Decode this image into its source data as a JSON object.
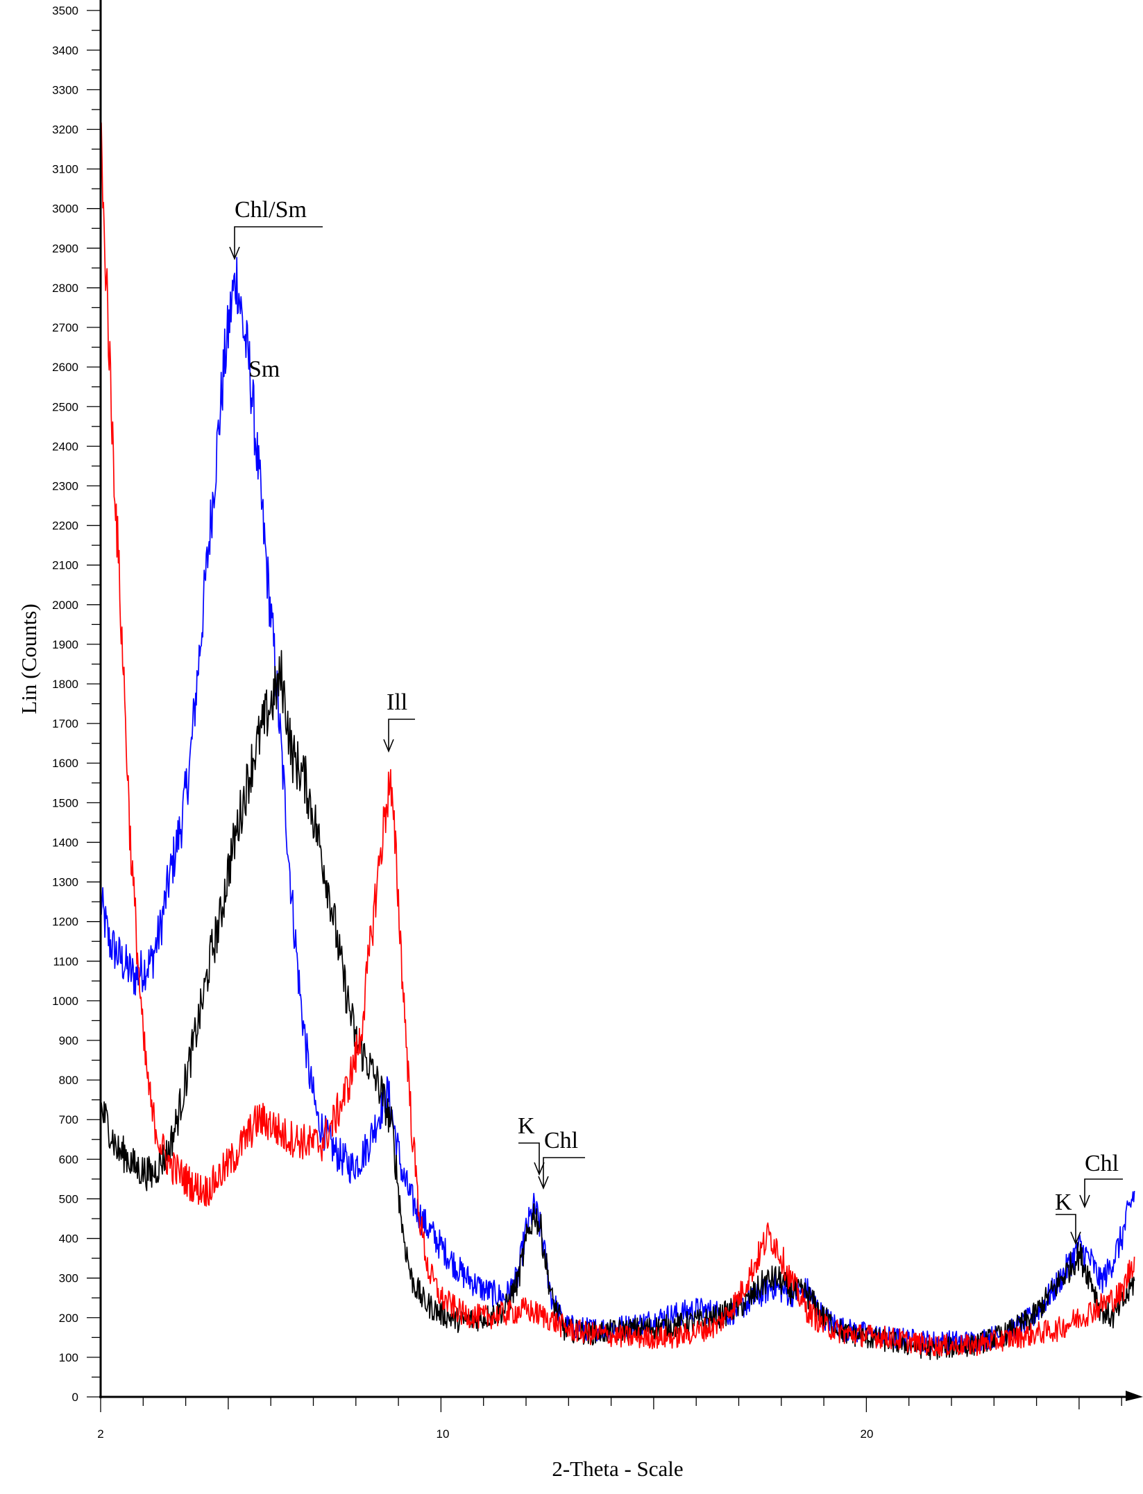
{
  "chart_data": {
    "type": "line",
    "title": "",
    "xlabel": "2-Theta - Scale",
    "ylabel": "Lin (Counts)",
    "xlim": [
      2,
      26.3
    ],
    "ylim": [
      0,
      3500
    ],
    "grid": false,
    "legend": null,
    "x_ticks_labeled": [
      2,
      10,
      20
    ],
    "x_minor_tick_step": 1,
    "y_ticks": [
      0,
      100,
      200,
      300,
      400,
      500,
      600,
      700,
      800,
      900,
      1000,
      1100,
      1200,
      1300,
      1400,
      1500,
      1600,
      1700,
      1800,
      1900,
      2000,
      2100,
      2200,
      2300,
      2400,
      2500,
      2600,
      2700,
      2800,
      2900,
      3000,
      3100,
      3200,
      3300,
      3400,
      3500
    ],
    "series": [
      {
        "name": "blue",
        "color": "#0000ff",
        "points": [
          [
            2.0,
            1250
          ],
          [
            2.2,
            1150
          ],
          [
            2.5,
            1100
          ],
          [
            2.8,
            1060
          ],
          [
            3.0,
            1080
          ],
          [
            3.2,
            1100
          ],
          [
            3.4,
            1180
          ],
          [
            3.6,
            1300
          ],
          [
            3.9,
            1450
          ],
          [
            4.1,
            1600
          ],
          [
            4.3,
            1850
          ],
          [
            4.5,
            2100
          ],
          [
            4.7,
            2350
          ],
          [
            4.9,
            2600
          ],
          [
            5.1,
            2780
          ],
          [
            5.2,
            2830
          ],
          [
            5.35,
            2700
          ],
          [
            5.5,
            2600
          ],
          [
            5.7,
            2350
          ],
          [
            5.9,
            2100
          ],
          [
            6.1,
            1850
          ],
          [
            6.3,
            1550
          ],
          [
            6.5,
            1250
          ],
          [
            6.7,
            1000
          ],
          [
            6.9,
            820
          ],
          [
            7.1,
            700
          ],
          [
            7.3,
            660
          ],
          [
            7.5,
            620
          ],
          [
            7.7,
            600
          ],
          [
            7.9,
            580
          ],
          [
            8.1,
            600
          ],
          [
            8.3,
            640
          ],
          [
            8.5,
            700
          ],
          [
            8.75,
            770
          ],
          [
            8.9,
            680
          ],
          [
            9.1,
            560
          ],
          [
            9.3,
            500
          ],
          [
            9.6,
            440
          ],
          [
            10.0,
            380
          ],
          [
            10.5,
            310
          ],
          [
            11.0,
            270
          ],
          [
            11.5,
            250
          ],
          [
            11.8,
            300
          ],
          [
            12.0,
            420
          ],
          [
            12.2,
            480
          ],
          [
            12.35,
            420
          ],
          [
            12.6,
            250
          ],
          [
            12.9,
            180
          ],
          [
            13.5,
            170
          ],
          [
            14.5,
            180
          ],
          [
            15.2,
            200
          ],
          [
            16.0,
            220
          ],
          [
            16.8,
            210
          ],
          [
            17.4,
            250
          ],
          [
            17.8,
            280
          ],
          [
            18.2,
            260
          ],
          [
            18.6,
            270
          ],
          [
            19.0,
            200
          ],
          [
            19.5,
            170
          ],
          [
            20.5,
            150
          ],
          [
            21.5,
            140
          ],
          [
            22.5,
            140
          ],
          [
            23.3,
            160
          ],
          [
            23.9,
            200
          ],
          [
            24.4,
            270
          ],
          [
            24.8,
            340
          ],
          [
            25.0,
            380
          ],
          [
            25.3,
            340
          ],
          [
            25.5,
            290
          ],
          [
            25.7,
            320
          ],
          [
            26.0,
            400
          ],
          [
            26.3,
            520
          ]
        ]
      },
      {
        "name": "black",
        "color": "#000000",
        "points": [
          [
            2.0,
            730
          ],
          [
            2.2,
            680
          ],
          [
            2.4,
            620
          ],
          [
            2.6,
            610
          ],
          [
            2.8,
            580
          ],
          [
            3.0,
            570
          ],
          [
            3.2,
            560
          ],
          [
            3.4,
            590
          ],
          [
            3.6,
            620
          ],
          [
            3.8,
            700
          ],
          [
            4.0,
            800
          ],
          [
            4.2,
            900
          ],
          [
            4.4,
            1000
          ],
          [
            4.6,
            1120
          ],
          [
            4.8,
            1200
          ],
          [
            5.0,
            1330
          ],
          [
            5.3,
            1480
          ],
          [
            5.6,
            1620
          ],
          [
            5.9,
            1720
          ],
          [
            6.25,
            1820
          ],
          [
            6.5,
            1620
          ],
          [
            6.8,
            1560
          ],
          [
            7.1,
            1420
          ],
          [
            7.4,
            1260
          ],
          [
            7.7,
            1060
          ],
          [
            8.0,
            900
          ],
          [
            8.3,
            840
          ],
          [
            8.6,
            770
          ],
          [
            8.85,
            680
          ],
          [
            9.1,
            420
          ],
          [
            9.3,
            300
          ],
          [
            9.6,
            240
          ],
          [
            10.0,
            210
          ],
          [
            10.5,
            190
          ],
          [
            11.0,
            200
          ],
          [
            11.5,
            220
          ],
          [
            11.8,
            290
          ],
          [
            12.0,
            390
          ],
          [
            12.2,
            470
          ],
          [
            12.35,
            420
          ],
          [
            12.6,
            250
          ],
          [
            12.9,
            170
          ],
          [
            13.5,
            160
          ],
          [
            14.5,
            170
          ],
          [
            15.5,
            180
          ],
          [
            16.5,
            200
          ],
          [
            17.2,
            240
          ],
          [
            17.6,
            290
          ],
          [
            17.9,
            300
          ],
          [
            18.2,
            270
          ],
          [
            18.6,
            260
          ],
          [
            19.0,
            200
          ],
          [
            19.5,
            160
          ],
          [
            20.5,
            140
          ],
          [
            21.5,
            120
          ],
          [
            22.5,
            130
          ],
          [
            23.3,
            160
          ],
          [
            23.9,
            200
          ],
          [
            24.4,
            270
          ],
          [
            24.8,
            330
          ],
          [
            25.0,
            360
          ],
          [
            25.3,
            290
          ],
          [
            25.5,
            220
          ],
          [
            25.8,
            200
          ],
          [
            26.1,
            250
          ],
          [
            26.3,
            293
          ]
        ]
      },
      {
        "name": "red",
        "color": "#ff0000",
        "points": [
          [
            2.0,
            3282
          ],
          [
            2.05,
            3000
          ],
          [
            2.15,
            2800
          ],
          [
            2.25,
            2500
          ],
          [
            2.4,
            2150
          ],
          [
            2.55,
            1800
          ],
          [
            2.7,
            1400
          ],
          [
            2.85,
            1150
          ],
          [
            3.0,
            900
          ],
          [
            3.2,
            720
          ],
          [
            3.4,
            640
          ],
          [
            3.6,
            590
          ],
          [
            3.9,
            560
          ],
          [
            4.2,
            530
          ],
          [
            4.5,
            520
          ],
          [
            4.8,
            560
          ],
          [
            5.1,
            600
          ],
          [
            5.4,
            650
          ],
          [
            5.7,
            700
          ],
          [
            6.0,
            690
          ],
          [
            6.3,
            660
          ],
          [
            6.6,
            650
          ],
          [
            6.9,
            640
          ],
          [
            7.2,
            640
          ],
          [
            7.5,
            700
          ],
          [
            7.8,
            780
          ],
          [
            8.1,
            900
          ],
          [
            8.3,
            1100
          ],
          [
            8.5,
            1300
          ],
          [
            8.7,
            1480
          ],
          [
            8.8,
            1560
          ],
          [
            8.95,
            1350
          ],
          [
            9.1,
            1050
          ],
          [
            9.3,
            700
          ],
          [
            9.5,
            450
          ],
          [
            9.7,
            320
          ],
          [
            10.0,
            250
          ],
          [
            10.5,
            210
          ],
          [
            11.0,
            200
          ],
          [
            11.5,
            210
          ],
          [
            12.0,
            220
          ],
          [
            12.5,
            200
          ],
          [
            13.0,
            170
          ],
          [
            13.5,
            160
          ],
          [
            14.5,
            150
          ],
          [
            15.5,
            150
          ],
          [
            16.5,
            180
          ],
          [
            17.0,
            250
          ],
          [
            17.4,
            340
          ],
          [
            17.7,
            410
          ],
          [
            17.9,
            380
          ],
          [
            18.2,
            300
          ],
          [
            18.6,
            220
          ],
          [
            19.0,
            180
          ],
          [
            19.5,
            160
          ],
          [
            20.5,
            150
          ],
          [
            21.5,
            130
          ],
          [
            22.5,
            130
          ],
          [
            23.5,
            150
          ],
          [
            24.5,
            170
          ],
          [
            25.0,
            200
          ],
          [
            25.5,
            230
          ],
          [
            26.0,
            260
          ],
          [
            26.3,
            354
          ]
        ]
      }
    ],
    "annotations": [
      {
        "text": "Chl/Sm",
        "x": 5.2,
        "arrow_tip_y": 2840,
        "kind": "bracket-arrow"
      },
      {
        "text": "Sm",
        "x": 5.5,
        "y": 2600,
        "kind": "label"
      },
      {
        "text": "Ill",
        "x": 8.8,
        "arrow_tip_y": 1600,
        "kind": "bracket-arrow"
      },
      {
        "text": "K",
        "x": 12.1,
        "arrow_tip_y": 520,
        "kind": "bracket-arrow-left"
      },
      {
        "text": "Chl",
        "x": 12.4,
        "arrow_tip_y": 530,
        "kind": "bracket-arrow"
      },
      {
        "text": "K",
        "x": 24.9,
        "arrow_tip_y": 390,
        "kind": "bracket-arrow-left"
      },
      {
        "text": "Chl",
        "x": 25.2,
        "arrow_tip_y": 480,
        "kind": "bracket-arrow"
      }
    ]
  },
  "labels": {
    "xlabel": "2-Theta - Scale",
    "ylabel": "Lin (Counts)",
    "x_tick_2": "2",
    "x_tick_10": "10",
    "x_tick_20": "20",
    "anno_chl_sm": "Chl/Sm",
    "anno_sm": "Sm",
    "anno_ill": "Ill",
    "anno_k_1": "K",
    "anno_chl_1": "Chl",
    "anno_k_2": "K",
    "anno_chl_2": "Chl"
  }
}
